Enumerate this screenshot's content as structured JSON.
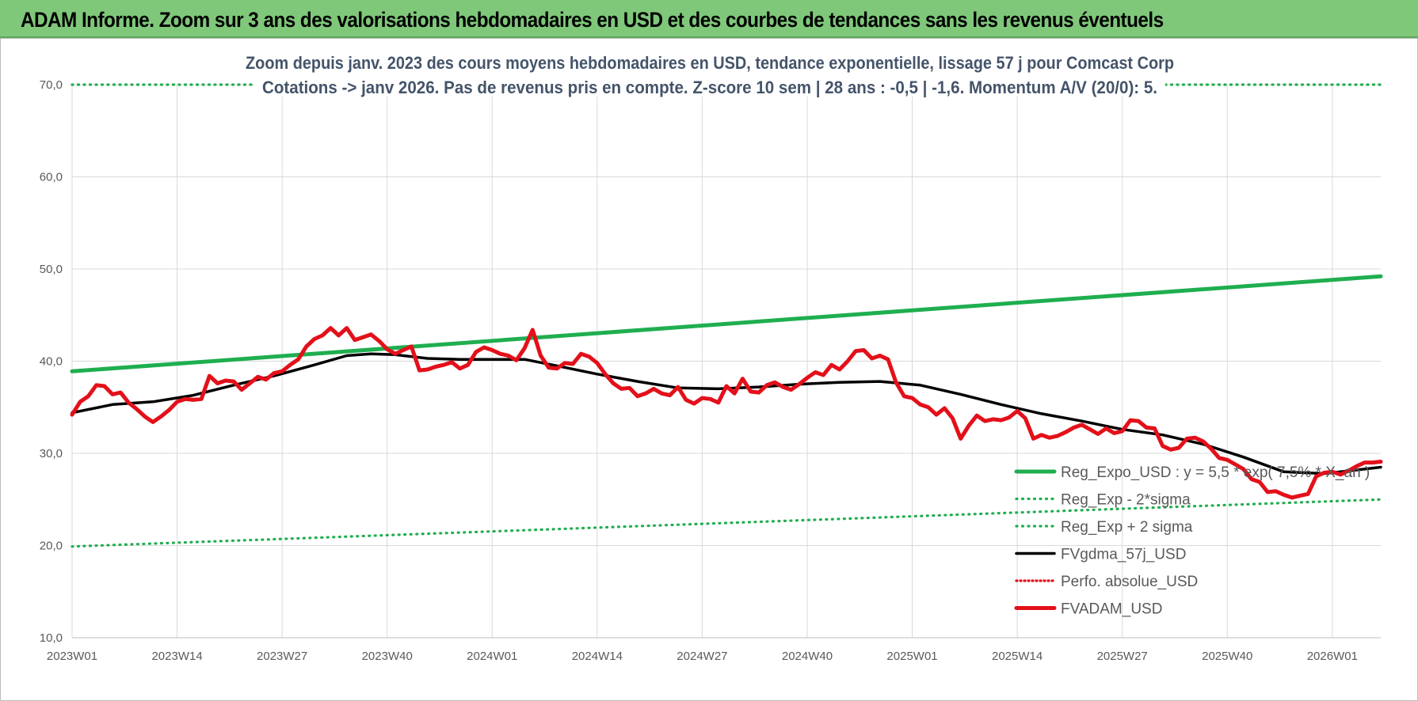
{
  "header": {
    "title": "ADAM Informe. Zoom sur 3 ans des valorisations hebdomadaires en USD et des courbes de tendances sans les revenus éventuels"
  },
  "chart_data": {
    "type": "line",
    "title": "Zoom depuis janv. 2023 des cours moyens hebdomadaires en USD, tendance exponentielle, lissage 57 j pour Comcast Corp",
    "subtitle": "Cotations -> janv 2026. Pas de revenus pris en compte. Z-score 10 sem | 28 ans : -0,5 | -1,6. Momentum A/V (20/0): 5.",
    "xlabel": "",
    "ylabel": "",
    "ylim": [
      10,
      70
    ],
    "y_ticks": [
      "10,0",
      "20,0",
      "30,0",
      "40,0",
      "50,0",
      "60,0",
      "70,0"
    ],
    "x_ticks": [
      "2023W01",
      "2023W14",
      "2023W27",
      "2023W40",
      "2024W01",
      "2024W14",
      "2024W27",
      "2024W40",
      "2025W01",
      "2025W14",
      "2025W27",
      "2025W40",
      "2026W01"
    ],
    "x_range_weeks": [
      0,
      162
    ],
    "grid": "vertical and horizontal, light gray",
    "legend_position": "bottom-right",
    "series": [
      {
        "name": "Reg_Expo_USD : y = 5,5 * exp( 7,5% * X_an )",
        "color": "#1fae4f",
        "style": "solid-thick",
        "x": [
          0,
          162
        ],
        "values": [
          38.9,
          49.2
        ]
      },
      {
        "name": "Reg_Exp - 2*sigma",
        "color": "#1fae4f",
        "style": "dotted",
        "x": [
          0,
          162
        ],
        "values": [
          19.9,
          25.0
        ]
      },
      {
        "name": "Reg_Exp + 2 sigma",
        "color": "#1fae4f",
        "style": "dotted",
        "x": [
          0,
          162
        ],
        "values": [
          70.0,
          70.0
        ]
      },
      {
        "name": "FVgdma_57j_USD",
        "color": "#000000",
        "style": "solid",
        "x": [
          0,
          5,
          10,
          15,
          20,
          25,
          30,
          34,
          37,
          40,
          44,
          48,
          52,
          56,
          60,
          65,
          70,
          75,
          80,
          85,
          90,
          95,
          100,
          105,
          110,
          115,
          120,
          125,
          130,
          135,
          140,
          145,
          150,
          155,
          162
        ],
        "values": [
          34.4,
          35.3,
          35.6,
          36.3,
          37.4,
          38.4,
          39.6,
          40.6,
          40.8,
          40.7,
          40.3,
          40.2,
          40.2,
          40.2,
          39.5,
          38.6,
          37.8,
          37.1,
          37.0,
          37.2,
          37.5,
          37.7,
          37.8,
          37.4,
          36.4,
          35.3,
          34.3,
          33.5,
          32.6,
          32.0,
          31.0,
          29.6,
          28.0,
          27.8,
          28.5
        ]
      },
      {
        "name": "Perfo. absolue_USD",
        "color": "#e3101a",
        "style": "dotted",
        "x": [],
        "values": []
      },
      {
        "name": "FVADAM_USD",
        "color": "#e3101a",
        "style": "solid-thick",
        "x": [
          0,
          1,
          2,
          3,
          4,
          5,
          6,
          7,
          8,
          9,
          10,
          11,
          12,
          13,
          14,
          15,
          16,
          17,
          18,
          19,
          20,
          21,
          22,
          23,
          24,
          25,
          26,
          27,
          28,
          29,
          30,
          31,
          32,
          33,
          34,
          35,
          36,
          37,
          38,
          39,
          40,
          41,
          42,
          43,
          44,
          45,
          46,
          47,
          48,
          49,
          50,
          51,
          52,
          53,
          54,
          55,
          56,
          57,
          58,
          59,
          60,
          61,
          62,
          63,
          64,
          65,
          66,
          67,
          68,
          69,
          70,
          71,
          72,
          73,
          74,
          75,
          76,
          77,
          78,
          79,
          80,
          81,
          82,
          83,
          84,
          85,
          86,
          87,
          88,
          89,
          90,
          91,
          92,
          93,
          94,
          95,
          96,
          97,
          98,
          99,
          100,
          101,
          102,
          103,
          104,
          105,
          106,
          107,
          108,
          109,
          110,
          111,
          112,
          113,
          114,
          115,
          116,
          117,
          118,
          119,
          120,
          121,
          122,
          123,
          124,
          125,
          126,
          127,
          128,
          129,
          130,
          131,
          132,
          133,
          134,
          135,
          136,
          137,
          138,
          139,
          140,
          141,
          142,
          143,
          144,
          145,
          146,
          147,
          148,
          149,
          150,
          151,
          152,
          153,
          154,
          155,
          156,
          157,
          158,
          159,
          160,
          161,
          162
        ],
        "values": [
          34.2,
          35.6,
          36.2,
          37.4,
          37.3,
          36.4,
          36.6,
          35.5,
          34.8,
          34.0,
          33.4,
          34.0,
          34.7,
          35.6,
          35.9,
          35.8,
          35.9,
          38.4,
          37.6,
          37.9,
          37.8,
          36.9,
          37.6,
          38.3,
          38.0,
          38.7,
          38.9,
          39.6,
          40.2,
          41.6,
          42.4,
          42.8,
          43.6,
          42.8,
          43.6,
          42.3,
          42.6,
          42.9,
          42.2,
          41.3,
          40.8,
          41.2,
          41.6,
          39.0,
          39.1,
          39.4,
          39.6,
          39.9,
          39.2,
          39.6,
          41.0,
          41.5,
          41.2,
          40.8,
          40.6,
          40.1,
          41.4,
          43.4,
          40.6,
          39.3,
          39.2,
          39.8,
          39.7,
          40.8,
          40.5,
          39.8,
          38.6,
          37.6,
          37.0,
          37.1,
          36.2,
          36.5,
          37.0,
          36.5,
          36.3,
          37.2,
          35.8,
          35.4,
          36.0,
          35.9,
          35.5,
          37.3,
          36.5,
          38.1,
          36.7,
          36.6,
          37.4,
          37.7,
          37.2,
          36.9,
          37.5,
          38.2,
          38.8,
          38.5,
          39.6,
          39.1,
          40.0,
          41.1,
          41.2,
          40.3,
          40.6,
          40.2,
          37.7,
          36.2,
          36.0,
          35.3,
          35.0,
          34.2,
          34.9,
          33.8,
          31.6,
          33.0,
          34.1,
          33.5,
          33.7,
          33.6,
          33.9,
          34.6,
          33.8,
          31.6,
          32.0,
          31.7,
          31.9,
          32.3,
          32.8,
          33.1,
          32.6,
          32.1,
          32.7,
          32.2,
          32.4,
          33.6,
          33.5,
          32.8,
          32.7,
          30.8,
          30.4,
          30.6,
          31.6,
          31.7,
          31.3,
          30.5,
          29.5,
          29.3,
          28.8,
          28.3,
          27.2,
          26.9,
          25.8,
          25.9,
          25.5,
          25.2,
          25.4,
          25.6,
          27.5,
          27.9,
          28.0,
          27.7,
          28.1,
          28.6,
          29.0,
          29.0,
          29.1
        ]
      }
    ]
  }
}
